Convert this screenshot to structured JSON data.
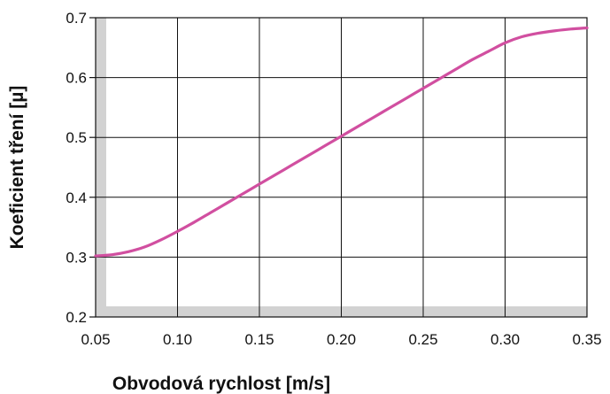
{
  "chart_data": {
    "type": "line",
    "title": "",
    "xlabel": "Obvodová rychlost [m/s]",
    "ylabel": "Koeficient tření [µ]",
    "xlim": [
      0.05,
      0.35
    ],
    "ylim": [
      0.2,
      0.7
    ],
    "x_ticks": [
      "0.05",
      "0.10",
      "0.15",
      "0.20",
      "0.25",
      "0.30",
      "0.35"
    ],
    "y_ticks": [
      "0.2",
      "0.3",
      "0.4",
      "0.5",
      "0.6",
      "0.7"
    ],
    "grid": true,
    "series": [
      {
        "color": "#d14fa0",
        "x": [
          0.05,
          0.06,
          0.07,
          0.08,
          0.09,
          0.1,
          0.11,
          0.12,
          0.13,
          0.14,
          0.15,
          0.16,
          0.17,
          0.18,
          0.19,
          0.2,
          0.21,
          0.22,
          0.23,
          0.24,
          0.25,
          0.26,
          0.27,
          0.28,
          0.29,
          0.3,
          0.31,
          0.32,
          0.33,
          0.34,
          0.35
        ],
        "y": [
          0.302,
          0.304,
          0.309,
          0.317,
          0.329,
          0.343,
          0.358,
          0.374,
          0.39,
          0.406,
          0.422,
          0.438,
          0.454,
          0.47,
          0.486,
          0.502,
          0.518,
          0.534,
          0.55,
          0.566,
          0.582,
          0.598,
          0.614,
          0.63,
          0.644,
          0.658,
          0.668,
          0.674,
          0.678,
          0.681,
          0.683
        ]
      }
    ]
  }
}
